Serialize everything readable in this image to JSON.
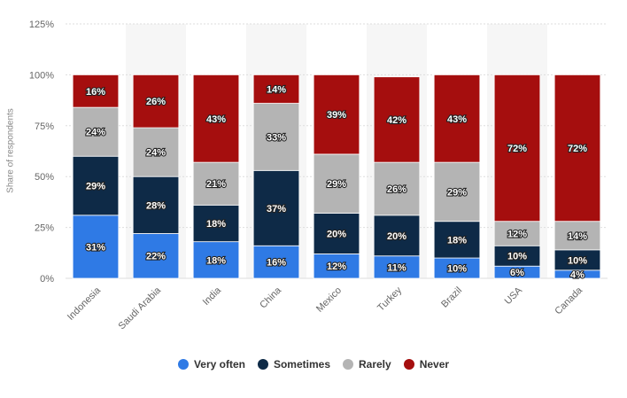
{
  "chart_data": {
    "type": "bar",
    "stacked": true,
    "ylabel": "Share of respondents",
    "yticks": [
      "0%",
      "25%",
      "50%",
      "75%",
      "100%",
      "125%"
    ],
    "ylim": [
      0,
      125
    ],
    "categories": [
      "Indonesia",
      "Saudi Arabia",
      "India",
      "China",
      "Mexico",
      "Turkey",
      "Brazil",
      "USA",
      "Canada"
    ],
    "series": [
      {
        "name": "Very often",
        "color": "#2f7ae5",
        "values": [
          31,
          22,
          18,
          16,
          12,
          11,
          10,
          6,
          4
        ]
      },
      {
        "name": "Sometimes",
        "color": "#0e2a47",
        "values": [
          29,
          28,
          18,
          37,
          20,
          20,
          18,
          10,
          10
        ]
      },
      {
        "name": "Rarely",
        "color": "#b4b4b4",
        "values": [
          24,
          24,
          21,
          33,
          29,
          26,
          29,
          12,
          14
        ]
      },
      {
        "name": "Never",
        "color": "#a50e0e",
        "values": [
          16,
          26,
          43,
          14,
          39,
          42,
          43,
          72,
          72
        ]
      }
    ],
    "grid": true,
    "legend_position": "bottom"
  }
}
